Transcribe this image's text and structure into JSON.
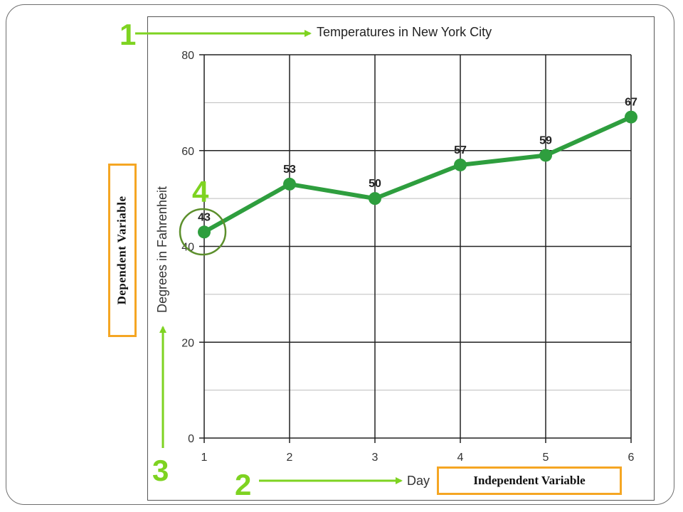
{
  "chart_data": {
    "type": "line",
    "title": "Temperatures in New York City",
    "xlabel": "Day",
    "ylabel": "Degrees in Fahrenheit",
    "x": [
      1,
      2,
      3,
      4,
      5,
      6
    ],
    "y": [
      43,
      53,
      50,
      57,
      59,
      67
    ],
    "data_labels": [
      "43",
      "53",
      "50",
      "57",
      "59",
      "67"
    ],
    "xlim": [
      1,
      6
    ],
    "ylim": [
      0,
      80
    ],
    "x_ticks": [
      "1",
      "2",
      "3",
      "4",
      "5",
      "6"
    ],
    "y_ticks": [
      "0",
      "20",
      "40",
      "60",
      "80"
    ],
    "grid": true,
    "series_color": "#2e9e3e"
  },
  "annotations": {
    "dependent_variable": "Dependent Variable",
    "independent_variable": "Independent Variable",
    "step_labels": [
      "1",
      "2",
      "3",
      "4"
    ],
    "accent_color": "#7ed321",
    "box_color": "#f5a623"
  }
}
